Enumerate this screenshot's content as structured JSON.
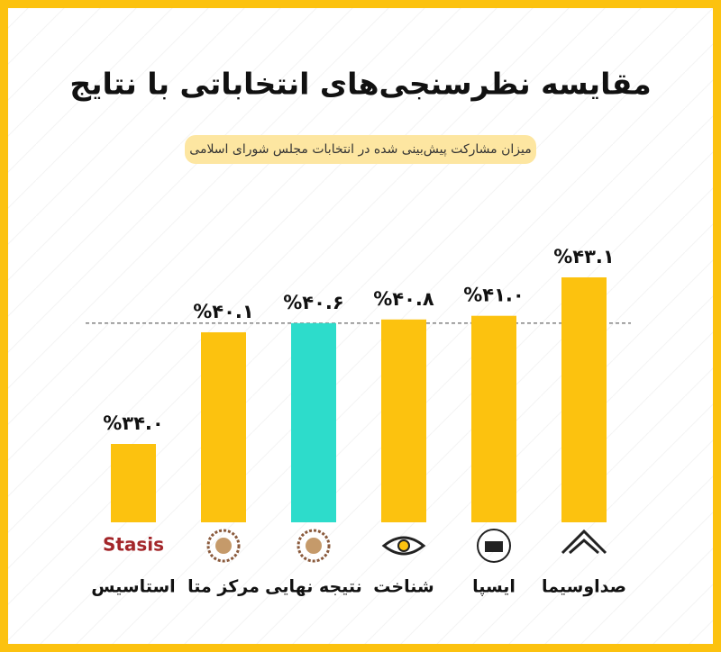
{
  "chart_data": {
    "type": "bar",
    "title": "مقایسه نظرسنجی‌های انتخاباتی با نتایج",
    "subtitle": "میزان مشارکت پیش‌بینی شده در انتخابات مجلس شورای اسلامی",
    "categories": [
      "استاسیس",
      "مرکز متا",
      "نتیجه نهایی",
      "شناخت",
      "ایسپا",
      "صداوسیما"
    ],
    "values": [
      34.0,
      40.1,
      40.6,
      40.8,
      41.0,
      43.1
    ],
    "value_labels": [
      "%۳۴.۰",
      "%۴۰.۱",
      "%۴۰.۶",
      "%۴۰.۸",
      "%۴۱.۰",
      "%۴۳.۱"
    ],
    "colors": [
      "#fcc20f",
      "#fcc20f",
      "#2ddccb",
      "#fcc20f",
      "#fcc20f",
      "#fcc20f"
    ],
    "reference_index": 2,
    "logo_labels": [
      "Stasis"
    ]
  }
}
